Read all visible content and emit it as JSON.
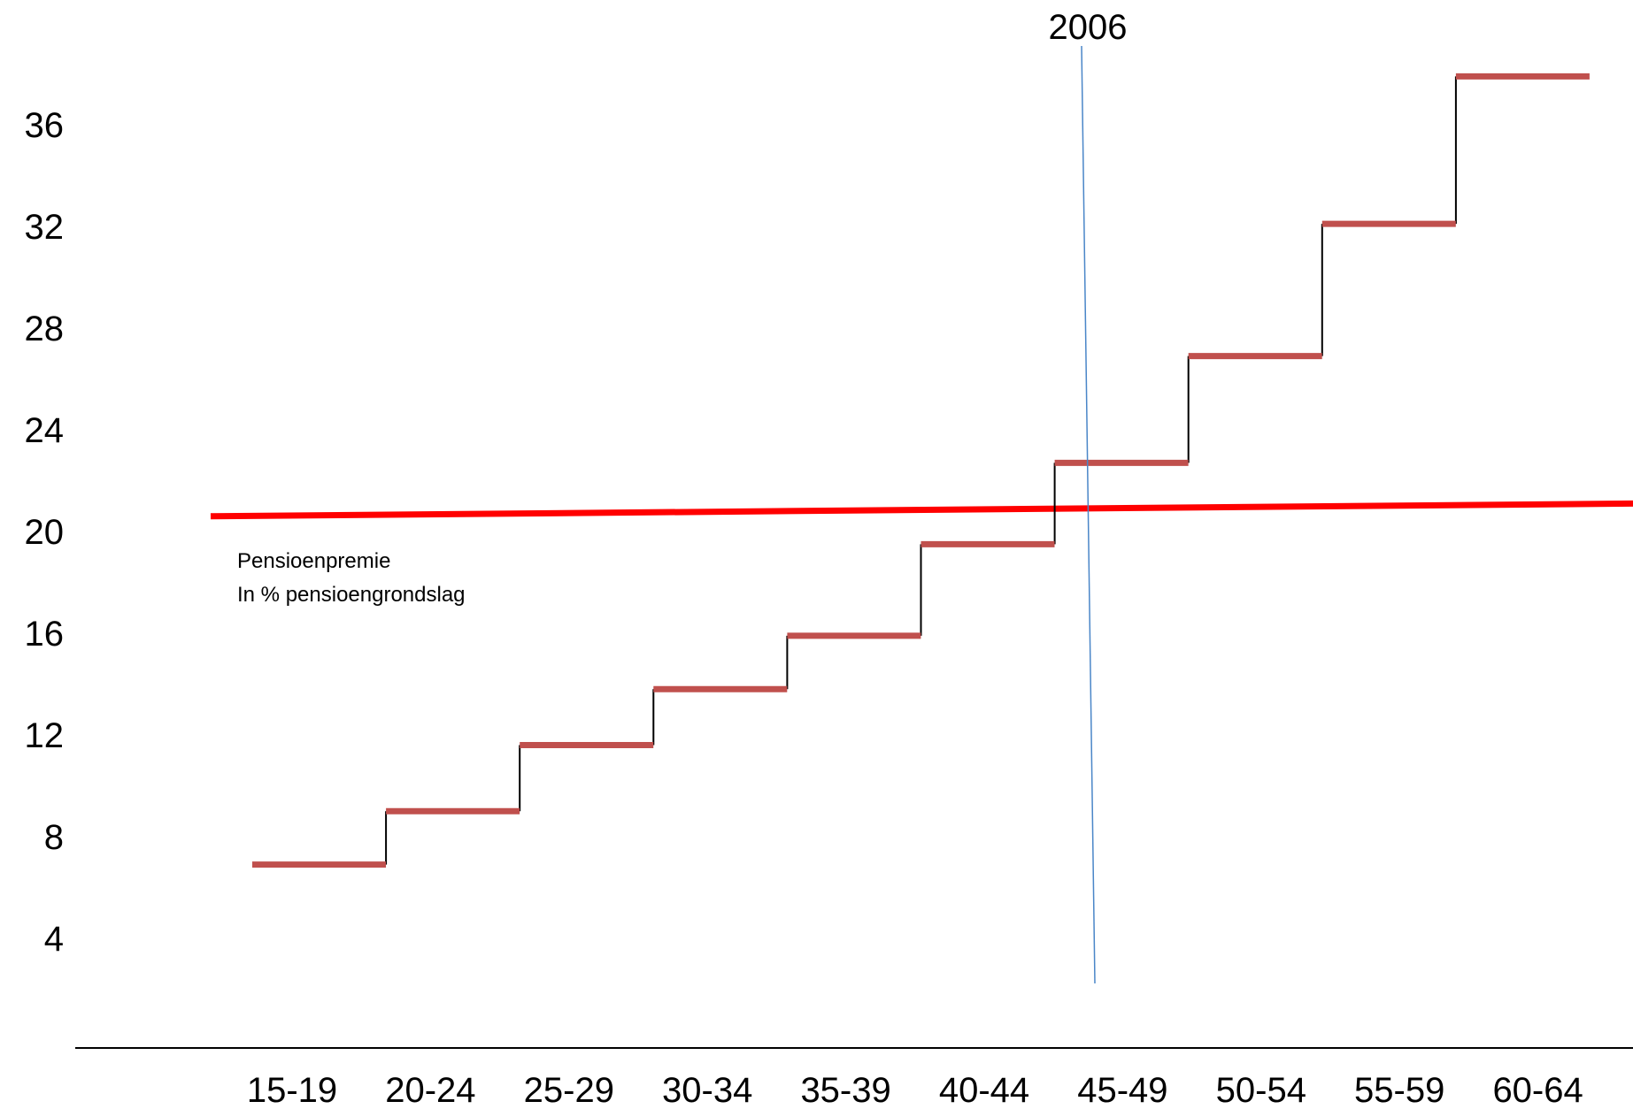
{
  "chart_data": {
    "type": "line",
    "categories": [
      "15-19",
      "20-24",
      "25-29",
      "30-34",
      "35-39",
      "40-44",
      "45-49",
      "50-54",
      "55-59",
      "60-64"
    ],
    "series": [
      {
        "values": [
          6.9,
          9.0,
          11.6,
          13.8,
          15.9,
          19.5,
          22.7,
          26.9,
          32.1,
          37.9
        ]
      }
    ],
    "reference_line": {
      "start": 20.6,
      "end": 21.1
    },
    "vertical_marker": {
      "label": "2006"
    },
    "annotation": [
      "Pensioenpremie",
      "In % pensioengrondslag"
    ],
    "yticks": [
      4,
      8,
      12,
      16,
      20,
      24,
      28,
      32,
      36
    ],
    "xlabel": "",
    "ylabel": "",
    "grid": false,
    "colors": {
      "steps": "#c0504d",
      "risers": "#000000",
      "reference": "#ff0000",
      "marker": "#4a86c8",
      "axis": "#000000"
    }
  }
}
